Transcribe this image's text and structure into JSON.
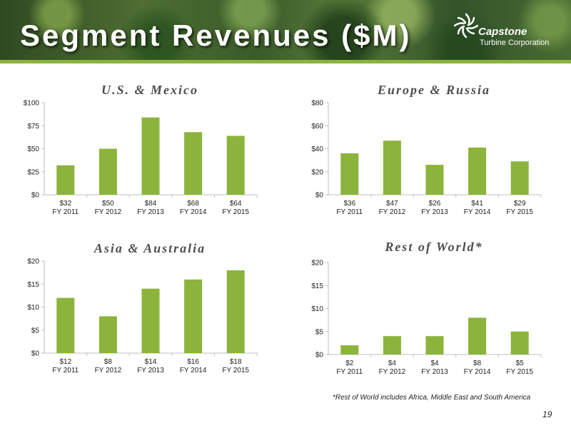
{
  "slide": {
    "title": "Segment Revenues ($M)",
    "page_number": "19",
    "footnote": "*Rest of World includes Africa, Middle East and South America"
  },
  "logo": {
    "name": "Capstone",
    "tagline": "Turbine Corporation"
  },
  "colors": {
    "bar": "#8cb43c",
    "accent_stripe": "#8cb43c",
    "axis": "#bfbfbf",
    "tick_text": "#222222",
    "title_text": "#4d4d4d"
  },
  "chart_data": [
    {
      "type": "bar",
      "title": "U.S. & Mexico",
      "categories": [
        "FY 2011",
        "FY 2012",
        "FY 2013",
        "FY 2014",
        "FY 2015"
      ],
      "value_labels": [
        "$32",
        "$50",
        "$84",
        "$68",
        "$64"
      ],
      "values": [
        32,
        50,
        84,
        68,
        64
      ],
      "ylim": [
        0,
        100
      ],
      "yticks": [
        0,
        25,
        50,
        75,
        100
      ],
      "ytick_labels": [
        "$0",
        "$25",
        "$50",
        "$75",
        "$100"
      ],
      "grid": false
    },
    {
      "type": "bar",
      "title": "Europe & Russia",
      "categories": [
        "FY 2011",
        "FY 2012",
        "FY 2013",
        "FY 2014",
        "FY 2015"
      ],
      "value_labels": [
        "$36",
        "$47",
        "$26",
        "$41",
        "$29"
      ],
      "values": [
        36,
        47,
        26,
        41,
        29
      ],
      "ylim": [
        0,
        80
      ],
      "yticks": [
        0,
        20,
        40,
        60,
        80
      ],
      "ytick_labels": [
        "$0",
        "$20",
        "$40",
        "$60",
        "$80"
      ],
      "grid": false
    },
    {
      "type": "bar",
      "title": "Asia & Australia",
      "categories": [
        "FY 2011",
        "FY 2012",
        "FY 2013",
        "FY 2014",
        "FY 2015"
      ],
      "value_labels": [
        "$12",
        "$8",
        "$14",
        "$16",
        "$18"
      ],
      "values": [
        12,
        8,
        14,
        16,
        18
      ],
      "ylim": [
        0,
        20
      ],
      "yticks": [
        0,
        5,
        10,
        15,
        20
      ],
      "ytick_labels": [
        "$0",
        "$5",
        "$10",
        "$15",
        "$20"
      ],
      "grid": false
    },
    {
      "type": "bar",
      "title": "Rest of World*",
      "categories": [
        "FY  2011",
        "FY 2012",
        "FY 2013",
        "FY 2014",
        "FY 2015"
      ],
      "value_labels": [
        "$2",
        "$4",
        "$4",
        "$8",
        "$5"
      ],
      "values": [
        2,
        4,
        4,
        8,
        5
      ],
      "ylim": [
        0,
        20
      ],
      "yticks": [
        0,
        5,
        10,
        15,
        20
      ],
      "ytick_labels": [
        "$0",
        "$5",
        "$10",
        "$15",
        "$20"
      ],
      "grid": false
    }
  ]
}
